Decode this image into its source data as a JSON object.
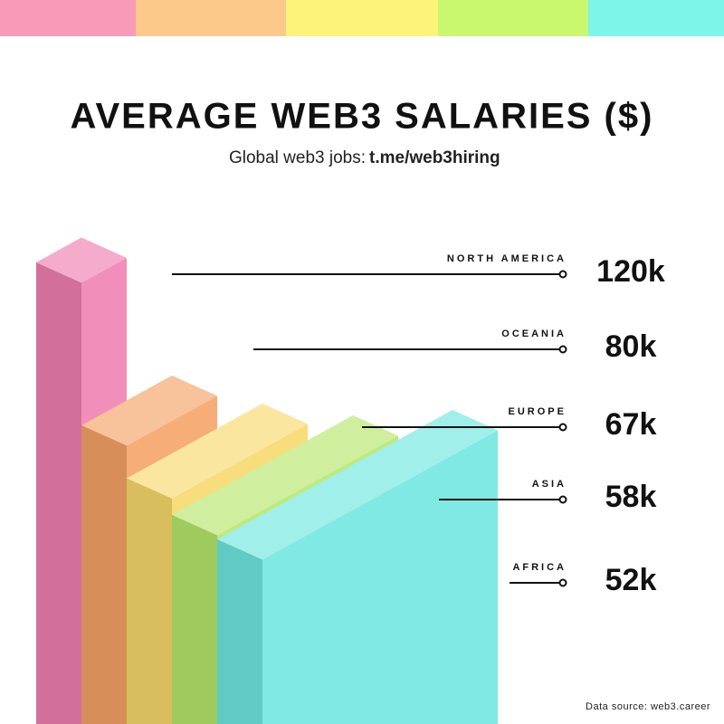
{
  "chart_data": {
    "type": "bar",
    "title": "AVERAGE WEB3 SALARIES ($)",
    "subtitle": "Global web3 jobs:",
    "subtitle_link": "t.me/web3hiring",
    "categories": [
      "NORTH AMERICA",
      "OCEANIA",
      "EUROPE",
      "ASIA",
      "AFRICA"
    ],
    "values": [
      120000,
      80000,
      67000,
      58000,
      52000
    ],
    "value_labels": [
      "120k",
      "80k",
      "67k",
      "58k",
      "52k"
    ],
    "colors": [
      "#f07fb0",
      "#f5a266",
      "#f7d96a",
      "#b5e66a",
      "#6fe6e0"
    ],
    "source": "Data source: web3.career"
  }
}
